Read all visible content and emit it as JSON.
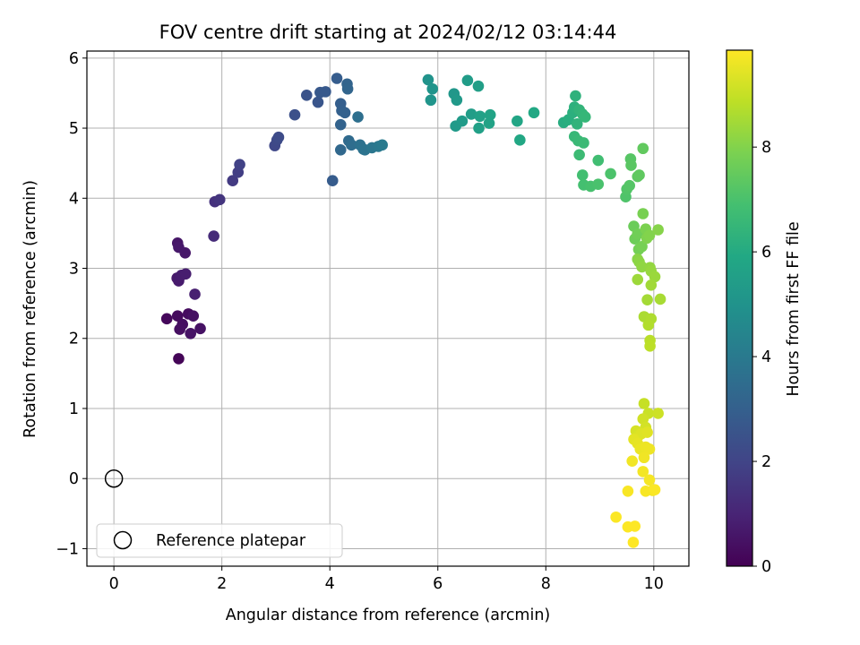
{
  "chart_data": {
    "type": "scatter",
    "title": "FOV centre drift starting at 2024/02/12 03:14:44",
    "xlabel": "Angular distance from reference (arcmin)",
    "ylabel": "Rotation from reference (arcmin)",
    "xlim": [
      -0.5,
      10.65
    ],
    "ylim": [
      -1.25,
      6.1
    ],
    "xticks": [
      0,
      2,
      4,
      6,
      8,
      10
    ],
    "yticks": [
      -1,
      0,
      1,
      2,
      3,
      4,
      5,
      6
    ],
    "grid": true,
    "colorbar": {
      "label": "Hours from first FF file",
      "range": [
        0,
        9.85
      ],
      "ticks": [
        0,
        2,
        4,
        6,
        8
      ],
      "colormap": "viridis"
    },
    "legend": {
      "placement": "lower-left",
      "label": "Reference platepar"
    },
    "reference_point": [
      0,
      0
    ],
    "points": [
      [
        1.2,
        1.71,
        0.1
      ],
      [
        0.98,
        2.28,
        0.2
      ],
      [
        1.18,
        2.32,
        0.28
      ],
      [
        1.38,
        2.35,
        0.32
      ],
      [
        1.27,
        2.2,
        0.36
      ],
      [
        1.22,
        2.13,
        0.4
      ],
      [
        1.47,
        2.32,
        0.45
      ],
      [
        1.6,
        2.14,
        0.48
      ],
      [
        1.42,
        2.07,
        0.52
      ],
      [
        1.18,
        3.36,
        0.58
      ],
      [
        1.32,
        3.22,
        0.62
      ],
      [
        1.2,
        3.3,
        0.66
      ],
      [
        1.17,
        2.86,
        0.7
      ],
      [
        1.2,
        2.82,
        0.74
      ],
      [
        1.25,
        2.9,
        0.78
      ],
      [
        1.33,
        2.92,
        0.82
      ],
      [
        1.5,
        2.63,
        0.88
      ],
      [
        1.85,
        3.46,
        1.2
      ],
      [
        1.87,
        3.95,
        1.4
      ],
      [
        1.96,
        3.98,
        1.5
      ],
      [
        2.2,
        4.25,
        1.7
      ],
      [
        2.3,
        4.37,
        1.8
      ],
      [
        2.33,
        4.48,
        1.9
      ],
      [
        2.98,
        4.75,
        2.1
      ],
      [
        3.02,
        4.83,
        2.2
      ],
      [
        3.05,
        4.87,
        2.25
      ],
      [
        3.35,
        5.19,
        2.4
      ],
      [
        3.57,
        5.47,
        2.5
      ],
      [
        3.78,
        5.37,
        2.6
      ],
      [
        3.82,
        5.51,
        2.7
      ],
      [
        3.92,
        5.52,
        2.75
      ],
      [
        4.05,
        4.25,
        2.85
      ],
      [
        4.13,
        5.71,
        2.9
      ],
      [
        4.2,
        5.35,
        2.95
      ],
      [
        4.22,
        5.25,
        3.0
      ],
      [
        4.28,
        5.22,
        3.05
      ],
      [
        4.2,
        5.05,
        3.1
      ],
      [
        4.32,
        5.63,
        3.15
      ],
      [
        4.33,
        5.56,
        3.2
      ],
      [
        4.2,
        4.69,
        3.3
      ],
      [
        4.35,
        4.82,
        3.4
      ],
      [
        4.4,
        4.76,
        3.5
      ],
      [
        4.52,
        5.16,
        3.6
      ],
      [
        4.56,
        4.76,
        3.65
      ],
      [
        4.62,
        4.7,
        3.7
      ],
      [
        4.65,
        4.69,
        3.75
      ],
      [
        4.78,
        4.72,
        3.85
      ],
      [
        4.9,
        4.74,
        3.95
      ],
      [
        4.97,
        4.76,
        4.0
      ],
      [
        5.82,
        5.69,
        5.0
      ],
      [
        5.9,
        5.56,
        5.05
      ],
      [
        5.87,
        5.4,
        5.1
      ],
      [
        6.3,
        5.49,
        5.2
      ],
      [
        6.35,
        5.4,
        5.25
      ],
      [
        6.33,
        5.03,
        5.3
      ],
      [
        6.45,
        5.1,
        5.35
      ],
      [
        6.55,
        5.68,
        5.4
      ],
      [
        6.62,
        5.2,
        5.45
      ],
      [
        6.75,
        5.6,
        5.5
      ],
      [
        6.76,
        5.0,
        5.55
      ],
      [
        6.78,
        5.17,
        5.6
      ],
      [
        6.95,
        5.07,
        5.65
      ],
      [
        6.97,
        5.19,
        5.7
      ],
      [
        7.47,
        5.1,
        5.8
      ],
      [
        7.52,
        4.83,
        5.85
      ],
      [
        7.78,
        5.22,
        5.9
      ],
      [
        8.33,
        5.08,
        6.1
      ],
      [
        8.42,
        5.12,
        6.15
      ],
      [
        8.5,
        5.22,
        6.2
      ],
      [
        8.53,
        5.3,
        6.25
      ],
      [
        8.55,
        5.46,
        6.3
      ],
      [
        8.58,
        5.06,
        6.35
      ],
      [
        8.62,
        5.26,
        6.4
      ],
      [
        8.68,
        5.2,
        6.45
      ],
      [
        8.73,
        5.16,
        6.5
      ],
      [
        8.53,
        4.88,
        6.55
      ],
      [
        8.6,
        4.82,
        6.6
      ],
      [
        8.7,
        4.79,
        6.65
      ],
      [
        8.62,
        4.62,
        6.7
      ],
      [
        8.97,
        4.54,
        6.8
      ],
      [
        8.68,
        4.33,
        6.85
      ],
      [
        8.7,
        4.19,
        6.9
      ],
      [
        8.83,
        4.17,
        6.95
      ],
      [
        8.97,
        4.2,
        7.0
      ],
      [
        9.2,
        4.35,
        7.05
      ],
      [
        9.48,
        4.02,
        7.1
      ],
      [
        9.5,
        4.13,
        7.15
      ],
      [
        9.55,
        4.18,
        7.2
      ],
      [
        9.57,
        4.56,
        7.25
      ],
      [
        9.58,
        4.47,
        7.3
      ],
      [
        9.7,
        4.31,
        7.35
      ],
      [
        9.73,
        4.33,
        7.4
      ],
      [
        9.8,
        4.71,
        7.45
      ],
      [
        9.63,
        3.6,
        7.6
      ],
      [
        9.65,
        3.42,
        7.65
      ],
      [
        9.7,
        3.49,
        7.7
      ],
      [
        9.72,
        3.27,
        7.75
      ],
      [
        9.78,
        3.31,
        7.8
      ],
      [
        9.8,
        3.78,
        7.85
      ],
      [
        9.85,
        3.56,
        7.9
      ],
      [
        9.87,
        3.43,
        7.95
      ],
      [
        9.92,
        3.47,
        8.0
      ],
      [
        10.08,
        3.55,
        8.05
      ],
      [
        9.7,
        3.13,
        8.1
      ],
      [
        9.73,
        3.09,
        8.15
      ],
      [
        9.78,
        3.02,
        8.2
      ],
      [
        9.93,
        3.01,
        8.25
      ],
      [
        9.95,
        2.96,
        8.3
      ],
      [
        10.02,
        2.88,
        8.35
      ],
      [
        9.7,
        2.84,
        8.4
      ],
      [
        9.95,
        2.76,
        8.45
      ],
      [
        9.88,
        2.55,
        8.5
      ],
      [
        10.12,
        2.56,
        8.55
      ],
      [
        9.82,
        2.31,
        8.6
      ],
      [
        9.95,
        2.28,
        8.65
      ],
      [
        9.9,
        2.19,
        8.7
      ],
      [
        9.93,
        1.97,
        8.8
      ],
      [
        9.93,
        1.89,
        8.85
      ],
      [
        9.82,
        1.07,
        9.0
      ],
      [
        9.9,
        0.93,
        9.05
      ],
      [
        10.08,
        0.93,
        9.1
      ],
      [
        9.8,
        0.85,
        9.15
      ],
      [
        9.85,
        0.73,
        9.2
      ],
      [
        9.67,
        0.68,
        9.25
      ],
      [
        9.73,
        0.62,
        9.3
      ],
      [
        9.77,
        0.64,
        9.35
      ],
      [
        9.88,
        0.66,
        9.4
      ],
      [
        9.63,
        0.56,
        9.45
      ],
      [
        9.7,
        0.5,
        9.5
      ],
      [
        9.75,
        0.42,
        9.55
      ],
      [
        9.85,
        0.45,
        9.6
      ],
      [
        9.92,
        0.42,
        9.62
      ],
      [
        9.82,
        0.3,
        9.65
      ],
      [
        9.6,
        0.25,
        9.67
      ],
      [
        9.8,
        0.1,
        9.7
      ],
      [
        9.92,
        -0.02,
        9.72
      ],
      [
        9.98,
        -0.17,
        9.74
      ],
      [
        9.85,
        -0.18,
        9.76
      ],
      [
        9.52,
        -0.18,
        9.78
      ],
      [
        10.02,
        -0.16,
        9.8
      ],
      [
        9.3,
        -0.55,
        9.82
      ],
      [
        9.52,
        -0.69,
        9.84
      ],
      [
        9.65,
        -0.68,
        9.86
      ],
      [
        9.62,
        -0.91,
        9.88
      ]
    ]
  }
}
